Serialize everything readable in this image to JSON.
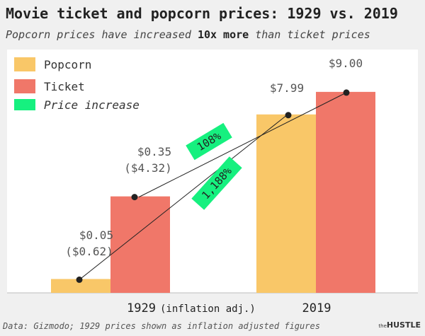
{
  "chart_data": {
    "type": "bar",
    "title": "Movie ticket and popcorn prices: 1929 vs. 2019",
    "subtitle_pre": "Popcorn prices have increased ",
    "subtitle_bold": "10x more",
    "subtitle_post": " than ticket prices",
    "categories": [
      "1929",
      "2019"
    ],
    "category_notes": [
      "(inflation adj.)",
      ""
    ],
    "series": [
      {
        "name": "Popcorn",
        "values": [
          0.62,
          7.99
        ],
        "color": "#f9c768"
      },
      {
        "name": "Ticket",
        "values": [
          4.32,
          9.0
        ],
        "color": "#f07769"
      }
    ],
    "legend": [
      {
        "label": "Popcorn",
        "color": "#f9c768"
      },
      {
        "label": "Ticket",
        "color": "#f07769"
      },
      {
        "label": "Price increase",
        "color": "#16f07f"
      }
    ],
    "legend_position": "top-left",
    "data_labels": {
      "popcorn_1929": [
        "$0.05",
        "($0.62)"
      ],
      "ticket_1929": [
        "$0.35",
        "($4.32)"
      ],
      "popcorn_2019": [
        "$7.99"
      ],
      "ticket_2019": [
        "$9.00"
      ]
    },
    "increase_labels": {
      "ticket": "108%",
      "popcorn": "1,188%"
    },
    "ylim": [
      0,
      10.2
    ],
    "footer": "Data: Gizmodo; 1929 prices shown as inflation adjusted figures",
    "brand_prefix": "the",
    "brand": "HUSTLE"
  }
}
